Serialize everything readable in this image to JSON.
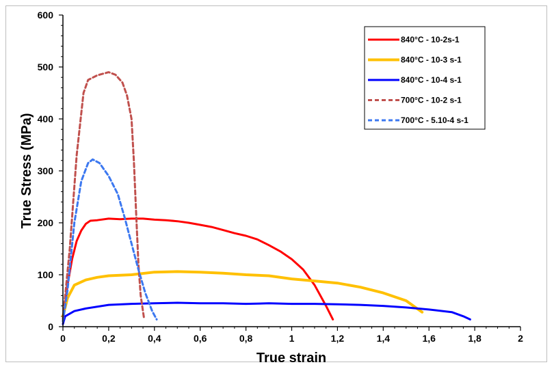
{
  "chart_data": {
    "type": "line",
    "xlabel": "True strain",
    "ylabel": "True Stress (MPa)",
    "xlim": [
      0,
      2
    ],
    "ylim": [
      0,
      600
    ],
    "x_ticks": [
      "0",
      "0,2",
      "0,4",
      "0,6",
      "0,8",
      "1",
      "1,2",
      "1,4",
      "1,6",
      "1,8",
      "2"
    ],
    "y_ticks": [
      "0",
      "100",
      "200",
      "300",
      "400",
      "500",
      "600"
    ],
    "legend_position": "top-right",
    "grid": false,
    "series": [
      {
        "name": "840°C - 10-2s-1",
        "color": "#ff0000",
        "dash": "solid",
        "width": 3,
        "points": [
          [
            0,
            10
          ],
          [
            0.02,
            80
          ],
          [
            0.04,
            130
          ],
          [
            0.06,
            165
          ],
          [
            0.08,
            185
          ],
          [
            0.1,
            198
          ],
          [
            0.12,
            204
          ],
          [
            0.15,
            205
          ],
          [
            0.2,
            208
          ],
          [
            0.25,
            207
          ],
          [
            0.3,
            208
          ],
          [
            0.35,
            208
          ],
          [
            0.4,
            206
          ],
          [
            0.45,
            205
          ],
          [
            0.5,
            203
          ],
          [
            0.55,
            200
          ],
          [
            0.6,
            196
          ],
          [
            0.65,
            192
          ],
          [
            0.7,
            186
          ],
          [
            0.75,
            180
          ],
          [
            0.8,
            175
          ],
          [
            0.85,
            168
          ],
          [
            0.9,
            157
          ],
          [
            0.95,
            145
          ],
          [
            1.0,
            130
          ],
          [
            1.05,
            110
          ],
          [
            1.1,
            80
          ],
          [
            1.15,
            40
          ],
          [
            1.18,
            14
          ]
        ]
      },
      {
        "name": "840°C - 10-3 s-1",
        "color": "#ffc000",
        "dash": "solid",
        "width": 4,
        "points": [
          [
            0,
            20
          ],
          [
            0.02,
            55
          ],
          [
            0.05,
            80
          ],
          [
            0.1,
            90
          ],
          [
            0.15,
            95
          ],
          [
            0.2,
            98
          ],
          [
            0.3,
            100
          ],
          [
            0.4,
            105
          ],
          [
            0.5,
            106
          ],
          [
            0.6,
            105
          ],
          [
            0.7,
            103
          ],
          [
            0.8,
            100
          ],
          [
            0.9,
            98
          ],
          [
            1.0,
            92
          ],
          [
            1.1,
            88
          ],
          [
            1.2,
            84
          ],
          [
            1.3,
            76
          ],
          [
            1.4,
            65
          ],
          [
            1.5,
            50
          ],
          [
            1.57,
            28
          ]
        ]
      },
      {
        "name": "840°C - 10-4 s-1",
        "color": "#0000ff",
        "dash": "solid",
        "width": 3,
        "points": [
          [
            0,
            5
          ],
          [
            0.01,
            20
          ],
          [
            0.05,
            30
          ],
          [
            0.1,
            35
          ],
          [
            0.2,
            42
          ],
          [
            0.3,
            44
          ],
          [
            0.4,
            45
          ],
          [
            0.5,
            46
          ],
          [
            0.6,
            45
          ],
          [
            0.7,
            45
          ],
          [
            0.8,
            44
          ],
          [
            0.9,
            45
          ],
          [
            1.0,
            44
          ],
          [
            1.1,
            44
          ],
          [
            1.2,
            43
          ],
          [
            1.3,
            42
          ],
          [
            1.4,
            40
          ],
          [
            1.5,
            37
          ],
          [
            1.6,
            33
          ],
          [
            1.7,
            28
          ],
          [
            1.75,
            20
          ],
          [
            1.78,
            14
          ]
        ]
      },
      {
        "name": "700°C - 10-2 s-1",
        "color": "#c0504d",
        "dash": "dashed",
        "width": 3,
        "points": [
          [
            0,
            15
          ],
          [
            0.03,
            150
          ],
          [
            0.06,
            330
          ],
          [
            0.09,
            450
          ],
          [
            0.11,
            475
          ],
          [
            0.15,
            484
          ],
          [
            0.2,
            490
          ],
          [
            0.23,
            485
          ],
          [
            0.26,
            470
          ],
          [
            0.28,
            445
          ],
          [
            0.3,
            400
          ],
          [
            0.31,
            320
          ],
          [
            0.32,
            220
          ],
          [
            0.33,
            120
          ],
          [
            0.34,
            60
          ],
          [
            0.355,
            15
          ]
        ]
      },
      {
        "name": "700°C - 5.10-4 s-1",
        "color": "#3c78f0",
        "dash": "dashed",
        "width": 3,
        "points": [
          [
            0,
            10
          ],
          [
            0.02,
            70
          ],
          [
            0.05,
            200
          ],
          [
            0.08,
            280
          ],
          [
            0.11,
            315
          ],
          [
            0.13,
            322
          ],
          [
            0.16,
            315
          ],
          [
            0.2,
            290
          ],
          [
            0.24,
            255
          ],
          [
            0.27,
            210
          ],
          [
            0.3,
            160
          ],
          [
            0.33,
            110
          ],
          [
            0.36,
            65
          ],
          [
            0.39,
            30
          ],
          [
            0.41,
            14
          ]
        ]
      }
    ]
  }
}
